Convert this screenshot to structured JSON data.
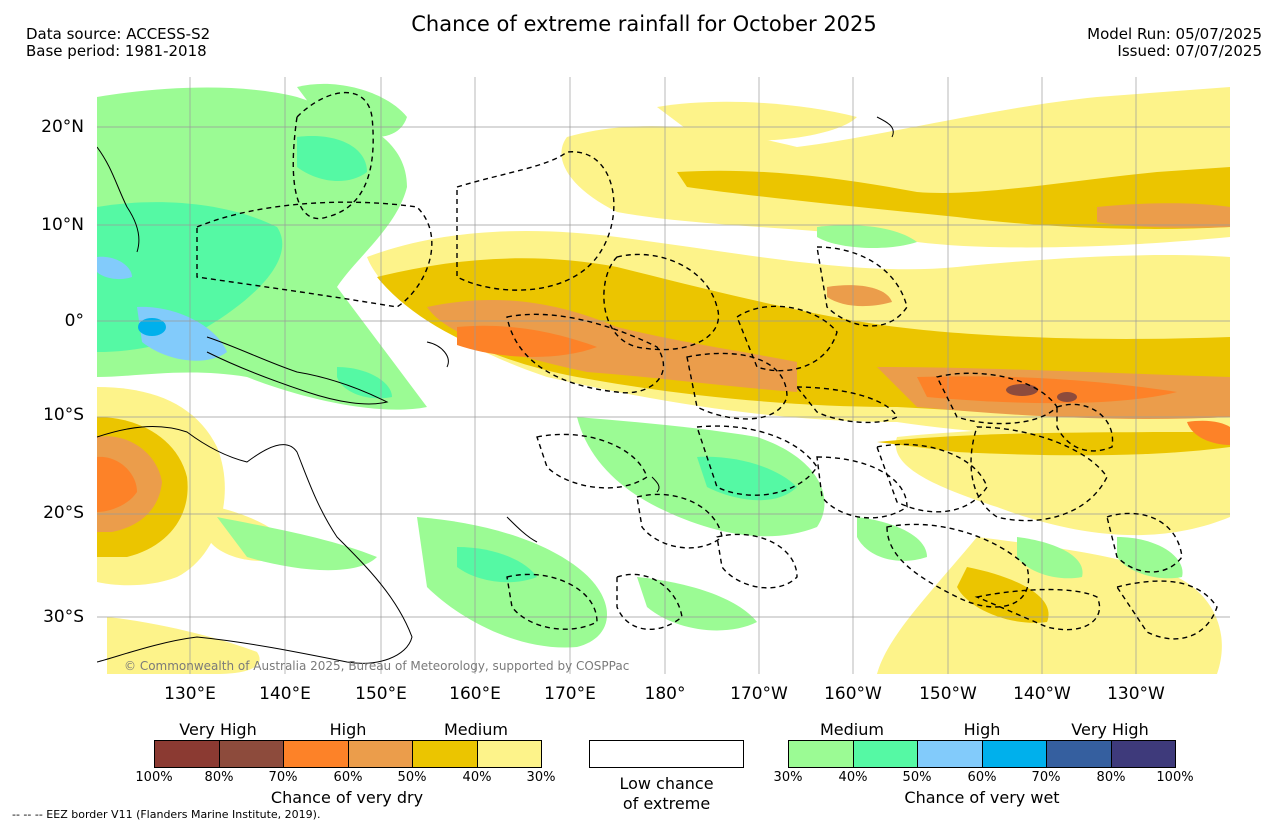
{
  "title": "Chance of extreme rainfall for October 2025",
  "meta_left": {
    "source": "Data source: ACCESS-S2",
    "base": "Base period: 1981-2018"
  },
  "meta_right": {
    "run": "Model Run: 05/07/2025",
    "issued": "Issued: 07/07/2025"
  },
  "lat_labels": [
    "20°N",
    "10°N",
    "0°",
    "10°S",
    "20°S",
    "30°S"
  ],
  "lon_labels": [
    "130°E",
    "140°E",
    "150°E",
    "160°E",
    "170°E",
    "180°",
    "170°W",
    "160°W",
    "150°W",
    "140°W",
    "130°W"
  ],
  "copyright": "© Commonwealth of Australia 2025, Bureau of Meteorology, supported by COSPPac",
  "legend": {
    "dry": {
      "heads": [
        "Very High",
        "High",
        "Medium"
      ],
      "colors": [
        "#8b3a32",
        "#8d4b3c",
        "#fd8228",
        "#eb9d4b",
        "#ebc500",
        "#fdf38a"
      ],
      "ticks": [
        "100%",
        "80%",
        "70%",
        "60%",
        "50%",
        "40%",
        "30%"
      ],
      "caption": "Chance of very dry"
    },
    "low": {
      "line1": "Low chance",
      "line2": "of extreme"
    },
    "wet": {
      "heads": [
        "Medium",
        "High",
        "Very High"
      ],
      "colors": [
        "#9bfb94",
        "#55f9a4",
        "#82cbfb",
        "#00b0ec",
        "#355f9f",
        "#3e3a7b"
      ],
      "ticks": [
        "30%",
        "40%",
        "50%",
        "60%",
        "70%",
        "80%",
        "100%"
      ],
      "caption": "Chance of very wet"
    }
  },
  "eez_note": "-- -- -- EEZ border V11 (Flanders Marine Institute, 2019)."
}
